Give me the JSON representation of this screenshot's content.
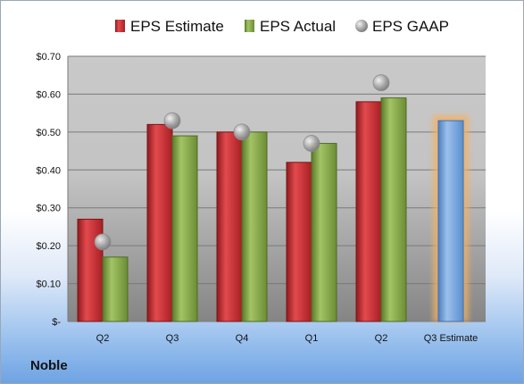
{
  "company": "Noble",
  "chart_data": {
    "type": "bar",
    "categories": [
      "Q2",
      "Q3",
      "Q4",
      "Q1",
      "Q2",
      "Q3 Estimate"
    ],
    "series": [
      {
        "name": "EPS Estimate",
        "color": "#c0282d",
        "values": [
          0.27,
          0.52,
          0.5,
          0.42,
          0.58,
          null
        ]
      },
      {
        "name": "EPS Actual",
        "color": "#84a446",
        "values": [
          0.17,
          0.49,
          0.5,
          0.47,
          0.59,
          null
        ]
      },
      {
        "name": "EPS GAAP",
        "color": "#9aa0a6",
        "style": "marker",
        "values": [
          0.21,
          0.53,
          0.5,
          0.47,
          0.63,
          null
        ]
      }
    ],
    "forecast": {
      "category": "Q3 Estimate",
      "value": 0.53,
      "color": "#6f9fd8",
      "glow": "#f4b061"
    },
    "yticks": [
      "$-",
      "$0.10",
      "$0.20",
      "$0.30",
      "$0.40",
      "$0.50",
      "$0.60",
      "$0.70"
    ],
    "ylim": [
      0,
      0.7
    ],
    "grid": true,
    "legend": "top"
  }
}
